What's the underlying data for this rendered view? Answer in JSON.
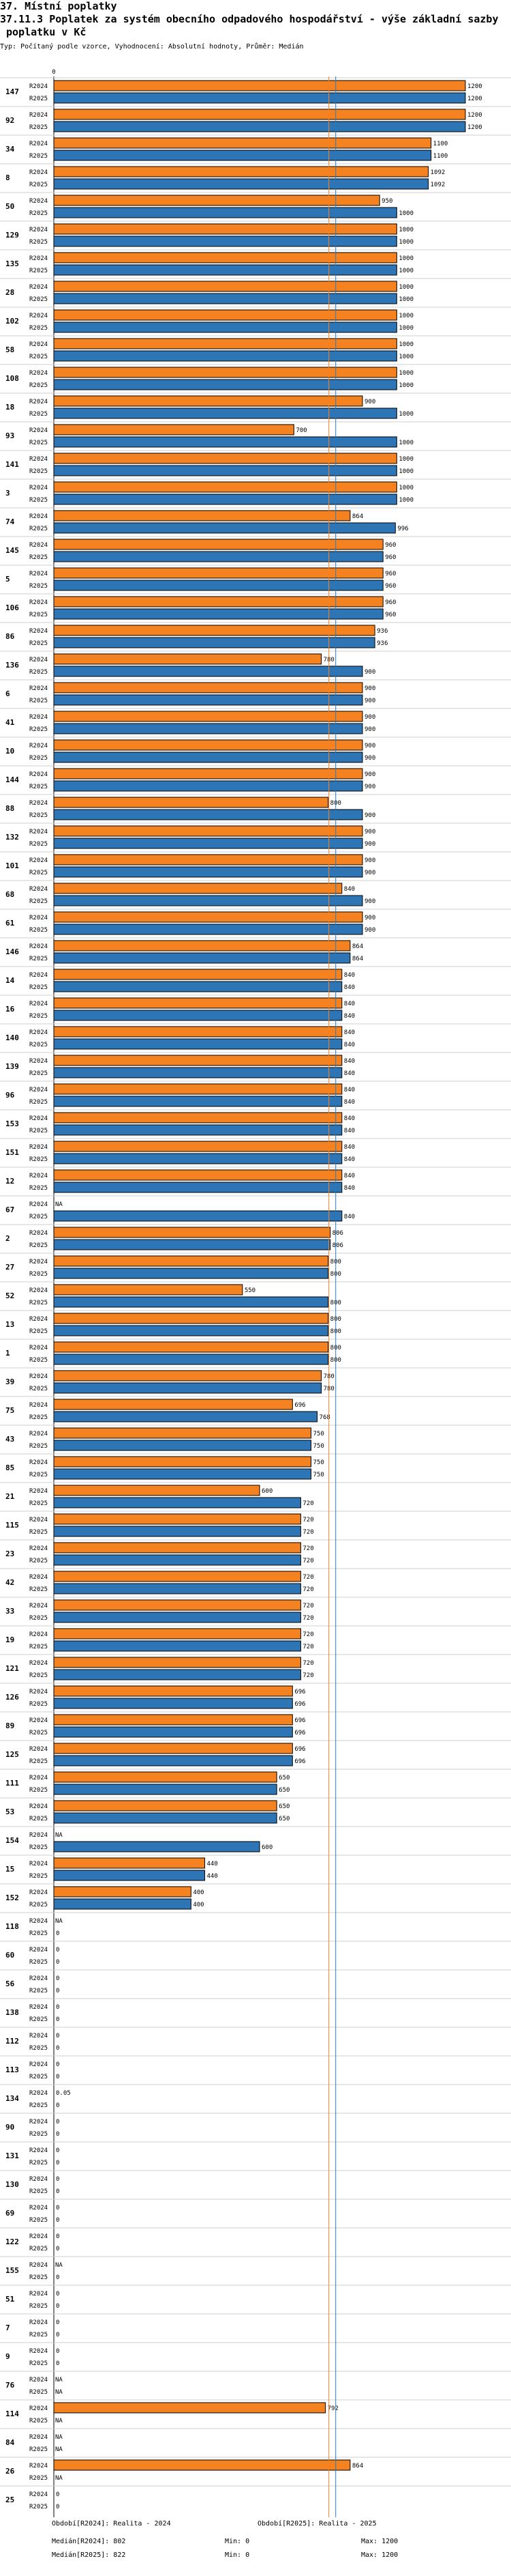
{
  "page": {
    "section_title": "37. Místní poplatky",
    "title_line1": "37.11.3 Poplatek za systém obecního odpadového hospodářství - výše základní sazby",
    "title_line2": "poplatku v Kč",
    "subtitle": "Typ: Počítaný podle vzorce, Vyhodnocení: Absolutní hodnoty, Průměr: Medián"
  },
  "chart_data": {
    "type": "bar",
    "orientation": "horizontal",
    "title": "37.11.3 Poplatek za systém obecního odpadového hospodářství - výše základní sazby poplatku v Kč",
    "xlim": [
      0,
      1200
    ],
    "axis_zero_label": "0",
    "series": [
      {
        "name": "R2024",
        "color": "#f58220"
      },
      {
        "name": "R2025",
        "color": "#2e75b6"
      }
    ],
    "missing_label": "NA",
    "medians": {
      "R2024": 802,
      "R2025": 822
    },
    "rows": [
      {
        "id": "147",
        "r2024": 1200,
        "r2025": 1200
      },
      {
        "id": "92",
        "r2024": 1200,
        "r2025": 1200
      },
      {
        "id": "34",
        "r2024": 1100,
        "r2025": 1100
      },
      {
        "id": "8",
        "r2024": 1092,
        "r2025": 1092
      },
      {
        "id": "50",
        "r2024": 950,
        "r2025": 1000
      },
      {
        "id": "129",
        "r2024": 1000,
        "r2025": 1000
      },
      {
        "id": "135",
        "r2024": 1000,
        "r2025": 1000
      },
      {
        "id": "28",
        "r2024": 1000,
        "r2025": 1000
      },
      {
        "id": "102",
        "r2024": 1000,
        "r2025": 1000
      },
      {
        "id": "58",
        "r2024": 1000,
        "r2025": 1000
      },
      {
        "id": "108",
        "r2024": 1000,
        "r2025": 1000
      },
      {
        "id": "18",
        "r2024": 900,
        "r2025": 1000
      },
      {
        "id": "93",
        "r2024": 700,
        "r2025": 1000
      },
      {
        "id": "141",
        "r2024": 1000,
        "r2025": 1000
      },
      {
        "id": "3",
        "r2024": 1000,
        "r2025": 1000
      },
      {
        "id": "74",
        "r2024": 864,
        "r2025": 996
      },
      {
        "id": "145",
        "r2024": 960,
        "r2025": 960
      },
      {
        "id": "5",
        "r2024": 960,
        "r2025": 960
      },
      {
        "id": "106",
        "r2024": 960,
        "r2025": 960
      },
      {
        "id": "86",
        "r2024": 936,
        "r2025": 936
      },
      {
        "id": "136",
        "r2024": 780,
        "r2025": 900
      },
      {
        "id": "6",
        "r2024": 900,
        "r2025": 900
      },
      {
        "id": "41",
        "r2024": 900,
        "r2025": 900
      },
      {
        "id": "10",
        "r2024": 900,
        "r2025": 900
      },
      {
        "id": "144",
        "r2024": 900,
        "r2025": 900
      },
      {
        "id": "88",
        "r2024": 800,
        "r2025": 900
      },
      {
        "id": "132",
        "r2024": 900,
        "r2025": 900
      },
      {
        "id": "101",
        "r2024": 900,
        "r2025": 900
      },
      {
        "id": "68",
        "r2024": 840,
        "r2025": 900
      },
      {
        "id": "61",
        "r2024": 900,
        "r2025": 900
      },
      {
        "id": "146",
        "r2024": 864,
        "r2025": 864
      },
      {
        "id": "14",
        "r2024": 840,
        "r2025": 840
      },
      {
        "id": "16",
        "r2024": 840,
        "r2025": 840
      },
      {
        "id": "140",
        "r2024": 840,
        "r2025": 840
      },
      {
        "id": "139",
        "r2024": 840,
        "r2025": 840
      },
      {
        "id": "96",
        "r2024": 840,
        "r2025": 840
      },
      {
        "id": "153",
        "r2024": 840,
        "r2025": 840
      },
      {
        "id": "151",
        "r2024": 840,
        "r2025": 840
      },
      {
        "id": "12",
        "r2024": 840,
        "r2025": 840
      },
      {
        "id": "67",
        "r2024": null,
        "r2025": 840
      },
      {
        "id": "2",
        "r2024": 806,
        "r2025": 806
      },
      {
        "id": "27",
        "r2024": 800,
        "r2025": 800
      },
      {
        "id": "52",
        "r2024": 550,
        "r2025": 800
      },
      {
        "id": "13",
        "r2024": 800,
        "r2025": 800
      },
      {
        "id": "1",
        "r2024": 800,
        "r2025": 800
      },
      {
        "id": "39",
        "r2024": 780,
        "r2025": 780
      },
      {
        "id": "75",
        "r2024": 696,
        "r2025": 768
      },
      {
        "id": "43",
        "r2024": 750,
        "r2025": 750
      },
      {
        "id": "85",
        "r2024": 750,
        "r2025": 750
      },
      {
        "id": "21",
        "r2024": 600,
        "r2025": 720
      },
      {
        "id": "115",
        "r2024": 720,
        "r2025": 720
      },
      {
        "id": "23",
        "r2024": 720,
        "r2025": 720
      },
      {
        "id": "42",
        "r2024": 720,
        "r2025": 720
      },
      {
        "id": "33",
        "r2024": 720,
        "r2025": 720
      },
      {
        "id": "19",
        "r2024": 720,
        "r2025": 720
      },
      {
        "id": "121",
        "r2024": 720,
        "r2025": 720
      },
      {
        "id": "126",
        "r2024": 696,
        "r2025": 696
      },
      {
        "id": "89",
        "r2024": 696,
        "r2025": 696
      },
      {
        "id": "125",
        "r2024": 696,
        "r2025": 696
      },
      {
        "id": "111",
        "r2024": 650,
        "r2025": 650
      },
      {
        "id": "53",
        "r2024": 650,
        "r2025": 650
      },
      {
        "id": "154",
        "r2024": null,
        "r2025": 600
      },
      {
        "id": "15",
        "r2024": 440,
        "r2025": 440
      },
      {
        "id": "152",
        "r2024": 400,
        "r2025": 400
      },
      {
        "id": "118",
        "r2024": null,
        "r2025": 0
      },
      {
        "id": "60",
        "r2024": 0,
        "r2025": 0
      },
      {
        "id": "56",
        "r2024": 0,
        "r2025": 0
      },
      {
        "id": "138",
        "r2024": 0,
        "r2025": 0
      },
      {
        "id": "112",
        "r2024": 0,
        "r2025": 0
      },
      {
        "id": "113",
        "r2024": 0,
        "r2025": 0
      },
      {
        "id": "134",
        "r2024": 0.05,
        "r2025": 0
      },
      {
        "id": "90",
        "r2024": 0,
        "r2025": 0
      },
      {
        "id": "131",
        "r2024": 0,
        "r2025": 0
      },
      {
        "id": "130",
        "r2024": 0,
        "r2025": 0
      },
      {
        "id": "69",
        "r2024": 0,
        "r2025": 0
      },
      {
        "id": "122",
        "r2024": 0,
        "r2025": 0
      },
      {
        "id": "155",
        "r2024": null,
        "r2025": 0
      },
      {
        "id": "51",
        "r2024": 0,
        "r2025": 0
      },
      {
        "id": "7",
        "r2024": 0,
        "r2025": 0
      },
      {
        "id": "9",
        "r2024": 0,
        "r2025": 0
      },
      {
        "id": "76",
        "r2024": null,
        "r2025": null
      },
      {
        "id": "114",
        "r2024": 792,
        "r2025": null
      },
      {
        "id": "84",
        "r2024": null,
        "r2025": null
      },
      {
        "id": "26",
        "r2024": 864,
        "r2025": null
      },
      {
        "id": "25",
        "r2024": 0,
        "r2025": 0
      }
    ]
  },
  "footer": {
    "period_2024": "Období[R2024]: Realita - 2024",
    "period_2025": "Období[R2025]: Realita - 2025",
    "median_2024": "Medián[R2024]: 802",
    "median_2025": "Medián[R2025]: 822",
    "min_2024": "Min: 0",
    "min_2025": "Min: 0",
    "max_2024": "Max: 1200",
    "max_2025": "Max: 1200"
  }
}
